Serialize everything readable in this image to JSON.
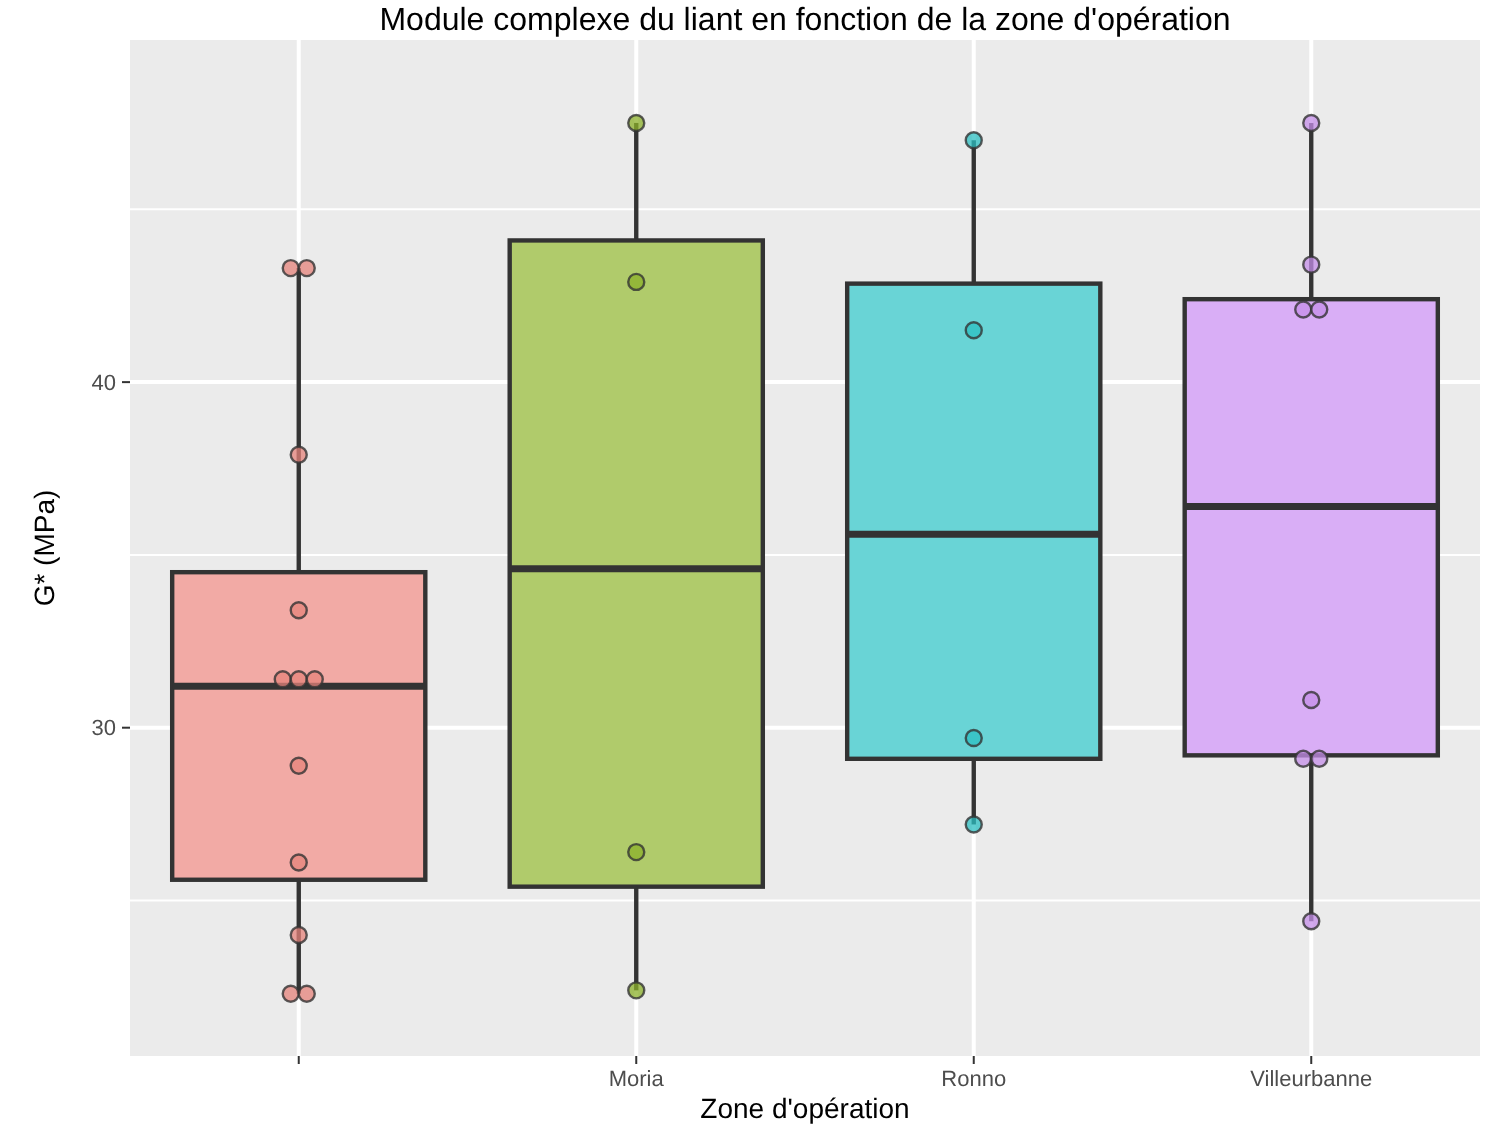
{
  "chart_data": {
    "type": "box",
    "title": "Module complexe du liant en fonction de la zone d'opération",
    "xlabel": "Zone d'opération",
    "ylabel": "G* (MPa)",
    "categories": [
      null,
      "Moria",
      "Ronno",
      "Villeurbanne"
    ],
    "colors": [
      "#f2aaa5",
      "#b0cb6b",
      "#69d4d6",
      "#d9aef6"
    ],
    "boxes": [
      {
        "low": 22.3,
        "q1": 25.6,
        "median": 31.2,
        "q3": 34.5,
        "high": 43.3
      },
      {
        "low": 22.4,
        "q1": 25.4,
        "median": 34.6,
        "q3": 44.1,
        "high": 47.5
      },
      {
        "low": 27.2,
        "q1": 29.1,
        "median": 35.6,
        "q3": 42.85,
        "high": 47.0
      },
      {
        "low": 24.4,
        "q1": 29.2,
        "median": 36.4,
        "q3": 42.4,
        "high": 47.5
      }
    ],
    "series": [
      {
        "type": "scatter",
        "color": "#e5837b",
        "x": [
          null,
          null,
          null,
          null,
          null,
          null,
          null,
          null,
          null,
          null,
          null,
          null
        ],
        "values": [
          43.3,
          43.3,
          37.9,
          33.4,
          31.4,
          31.4,
          31.4,
          28.9,
          26.1,
          24.0,
          22.3,
          22.3
        ]
      },
      {
        "type": "scatter",
        "color": "#8bb02a",
        "x": [
          "Moria",
          "Moria",
          "Moria",
          "Moria"
        ],
        "values": [
          47.5,
          42.9,
          26.4,
          22.4
        ]
      },
      {
        "type": "scatter",
        "color": "#2cbfc2",
        "x": [
          "Ronno",
          "Ronno",
          "Ronno",
          "Ronno"
        ],
        "values": [
          47.0,
          41.5,
          29.7,
          27.2
        ]
      },
      {
        "type": "scatter",
        "color": "#c48ee8",
        "x": [
          "Villeurbanne",
          "Villeurbanne",
          "Villeurbanne",
          "Villeurbanne",
          "Villeurbanne",
          "Villeurbanne",
          "Villeurbanne",
          "Villeurbanne"
        ],
        "values": [
          47.5,
          43.4,
          42.1,
          42.1,
          30.8,
          29.1,
          29.1,
          24.4
        ]
      }
    ],
    "ylim": [
      20.5,
      49.9
    ],
    "yticks": [
      30,
      40
    ],
    "grid": true,
    "marker": "circle"
  }
}
